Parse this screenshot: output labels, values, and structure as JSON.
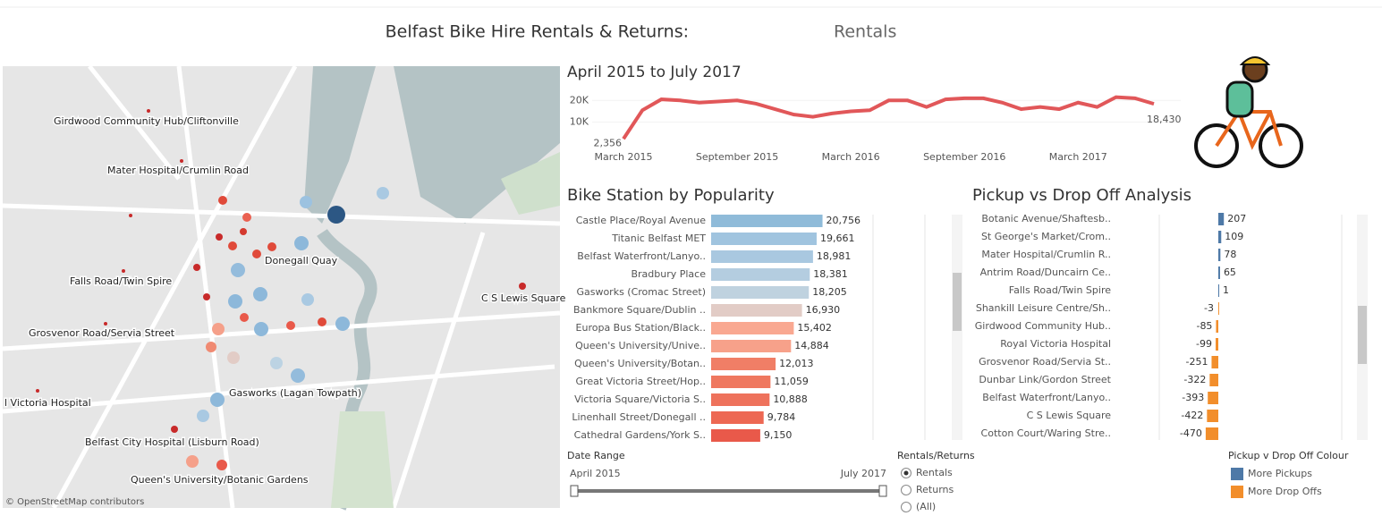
{
  "header": {
    "title": "Belfast Bike Hire Rentals & Returns:",
    "selection": "Rentals"
  },
  "map": {
    "stations": [
      "Girdwood Community Hub/Cliftonville",
      "Mater Hospital/Crumlin Road",
      "Donegall Quay",
      "Falls Road/Twin Spire",
      "C S Lewis Square",
      "Grosvenor Road/Servia Street",
      "Gasworks (Lagan Towpath)",
      "l Victoria Hospital",
      "Belfast City Hospital (Lisburn Road)",
      "Queen's University/Botanic Gardens"
    ],
    "attribution": "© OpenStreetMap contributors"
  },
  "chart_data": [
    {
      "type": "line",
      "title": "April 2015 to July 2017",
      "x": [
        "2015-03",
        "2015-04",
        "2015-05",
        "2015-06",
        "2015-07",
        "2015-08",
        "2015-09",
        "2015-10",
        "2015-11",
        "2015-12",
        "2016-01",
        "2016-02",
        "2016-03",
        "2016-04",
        "2016-05",
        "2016-06",
        "2016-07",
        "2016-08",
        "2016-09",
        "2016-10",
        "2016-11",
        "2016-12",
        "2017-01",
        "2017-02",
        "2017-03",
        "2017-04",
        "2017-05",
        "2017-06",
        "2017-07"
      ],
      "values": [
        2356,
        15500,
        20500,
        20000,
        19000,
        19500,
        20000,
        18500,
        16000,
        13500,
        12500,
        14000,
        15000,
        15500,
        20000,
        20000,
        17000,
        20500,
        21000,
        21000,
        19000,
        16000,
        17000,
        16000,
        19000,
        17000,
        21500,
        21000,
        18430
      ],
      "value_labels": [
        "2,356",
        null,
        null,
        null,
        null,
        null,
        null,
        null,
        null,
        null,
        null,
        null,
        null,
        null,
        null,
        null,
        null,
        null,
        null,
        null,
        null,
        null,
        null,
        null,
        null,
        null,
        null,
        null,
        "18,430"
      ],
      "color": "#e15759",
      "ylim": [
        0,
        23000
      ],
      "yticks": [
        {
          "value": 10000,
          "label": "10K"
        },
        {
          "value": 20000,
          "label": "20K"
        }
      ],
      "xticks": [
        {
          "value": "2015-03",
          "label": "March 2015"
        },
        {
          "value": "2015-09",
          "label": "September 2015"
        },
        {
          "value": "2016-03",
          "label": "March 2016"
        },
        {
          "value": "2016-09",
          "label": "September 2016"
        },
        {
          "value": "2017-03",
          "label": "March 2017"
        }
      ]
    },
    {
      "type": "hbar",
      "title": "Bike Station by Popularity",
      "categories": [
        "Castle Place/Royal Avenue",
        "Titanic Belfast MET",
        "Belfast Waterfront/Lanyo..",
        "Bradbury Place",
        "Gasworks (Cromac Street)",
        "Bankmore Square/Dublin ..",
        "Europa Bus Station/Black..",
        "Queen's University/Unive..",
        "Queen's University/Botan..",
        "Great Victoria Street/Hop..",
        "Victoria Square/Victoria S..",
        "Linenhall Street/Donegall ..",
        "Cathedral Gardens/York S.."
      ],
      "values": [
        20756,
        19661,
        18981,
        18381,
        18205,
        16930,
        15402,
        14884,
        12013,
        11059,
        10888,
        9784,
        9150
      ],
      "value_labels": [
        "20,756",
        "19,661",
        "18,981",
        "18,381",
        "18,205",
        "16,930",
        "15,402",
        "14,884",
        "12,013",
        "11,059",
        "10,888",
        "9,784",
        "9,150"
      ],
      "colors": [
        "#8fbbd9",
        "#a0c4df",
        "#a9c8e0",
        "#b4cde0",
        "#bfd2df",
        "#e2ccc6",
        "#f9a891",
        "#f7a18a",
        "#f07e66",
        "#ef785f",
        "#ee725c",
        "#ed6853",
        "#e9594a"
      ],
      "xlim": [
        0,
        21000
      ]
    },
    {
      "type": "diverging-bar",
      "title": "Pickup vs Drop Off Analysis",
      "categories": [
        "Botanic Avenue/Shaftesb..",
        "St George's Market/Crom..",
        "Mater Hospital/Crumlin R..",
        "Antrim Road/Duncairn Ce..",
        "Falls Road/Twin Spire",
        "Shankill Leisure Centre/Sh..",
        "Girdwood Community Hub..",
        "Royal Victoria Hospital",
        "Grosvenor Road/Servia St..",
        "Dunbar Link/Gordon Street",
        "Belfast Waterfront/Lanyo..",
        "C S Lewis Square",
        "Cotton Court/Waring Stre.."
      ],
      "values": [
        207,
        109,
        78,
        65,
        1,
        -3,
        -85,
        -99,
        -251,
        -322,
        -393,
        -422,
        -470
      ],
      "xlim": [
        -2200,
        4600
      ],
      "legend_title": "Pickup v Drop Off Colour",
      "series": [
        {
          "name": "More Pickups",
          "color": "#4e79a7"
        },
        {
          "name": "More Drop Offs",
          "color": "#f28e2b"
        }
      ]
    }
  ],
  "controls": {
    "date_range": {
      "label": "Date Range",
      "start": "April 2015",
      "end": "July 2017"
    },
    "rentals_returns": {
      "label": "Rentals/Returns",
      "options": [
        "Rentals",
        "Returns",
        "(All)"
      ]
    }
  }
}
